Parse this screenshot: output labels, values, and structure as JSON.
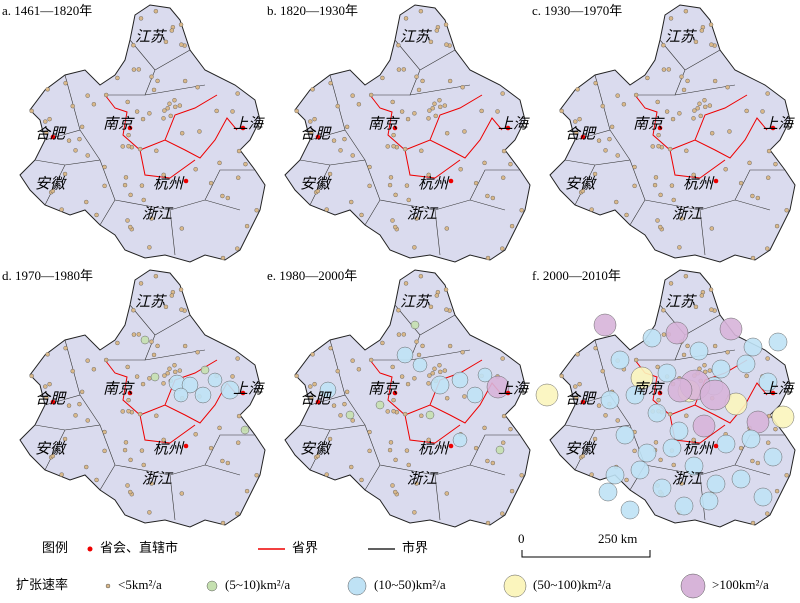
{
  "panels": [
    {
      "title": "a. 1461—1820年",
      "places": [
        "江苏",
        "南京",
        "上海",
        "合肥",
        "安徽",
        "杭州",
        "浙江"
      ]
    },
    {
      "title": "b. 1820—1930年",
      "places": [
        "江苏",
        "南京",
        "上海",
        "合肥",
        "安徽",
        "杭州",
        "浙江"
      ]
    },
    {
      "title": "c. 1930—1970年",
      "places": [
        "江苏",
        "南京",
        "上海",
        "合肥",
        "安徽",
        "杭州",
        "浙江"
      ]
    },
    {
      "title": "d. 1970—1980年",
      "places": [
        "江苏",
        "南京",
        "上海",
        "合肥",
        "安徽",
        "杭州",
        "浙江"
      ]
    },
    {
      "title": "e. 1980—2000年",
      "places": [
        "江苏",
        "南京",
        "上海",
        "合肥",
        "安徽",
        "杭州",
        "浙江"
      ]
    },
    {
      "title": "f. 2000—2010年",
      "places": [
        "江苏",
        "南京",
        "上海",
        "合肥",
        "安徽",
        "杭州",
        "浙江"
      ]
    }
  ],
  "legend": {
    "title": "图例",
    "items": [
      "省会、直辖市",
      "省界",
      "市界"
    ],
    "scale": [
      "0",
      "250 km"
    ],
    "rate_title": "扩张速率",
    "classes": [
      "<5km²/a",
      "(5~10)km²/a",
      "(10~50)km²/a",
      "(50~100)km²/a",
      ">100km²/a"
    ]
  }
}
